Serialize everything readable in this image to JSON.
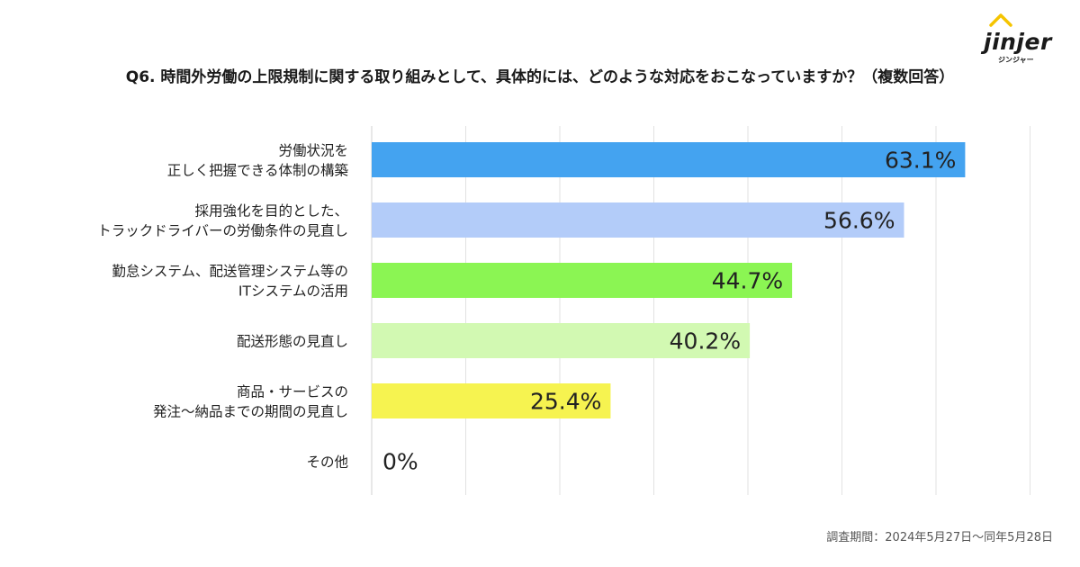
{
  "logo": {
    "word": "jinjer",
    "sub": "ジンジャー"
  },
  "title": "Q6. 時間外労働の上限規制に関する取り組みとして、具体的には、どのような対応をおこなっていますか？（複数回答）",
  "footnote": "調査期間：2024年5月27日〜同年5月28日",
  "chart_data": {
    "type": "bar",
    "orientation": "horizontal",
    "title": "Q6. 時間外労働の上限規制に関する取り組みとして、具体的には、どのような対応をおこなっていますか？（複数回答）",
    "unit": "%",
    "xlim": [
      0,
      70
    ],
    "grid": true,
    "categories": [
      [
        "労働状況を",
        "正しく把握できる体制の構築"
      ],
      [
        "採用強化を目的とした、",
        "トラックドライバーの労働条件の見直し"
      ],
      [
        "勤怠システム、配送管理システム等の",
        "ITシステムの活用"
      ],
      [
        "配送形態の見直し"
      ],
      [
        "商品・サービスの",
        "発注〜納品までの期間の見直し"
      ],
      [
        "その他"
      ]
    ],
    "values": [
      63.1,
      56.6,
      44.7,
      40.2,
      25.4,
      0
    ],
    "value_labels": [
      "63.1%",
      "56.6%",
      "44.7%",
      "40.2%",
      "25.4%",
      "0%"
    ],
    "colors": [
      "#44a3f0",
      "#b3ccf9",
      "#8bf553",
      "#d2f9b2",
      "#f6f350",
      "#cccccc"
    ]
  }
}
